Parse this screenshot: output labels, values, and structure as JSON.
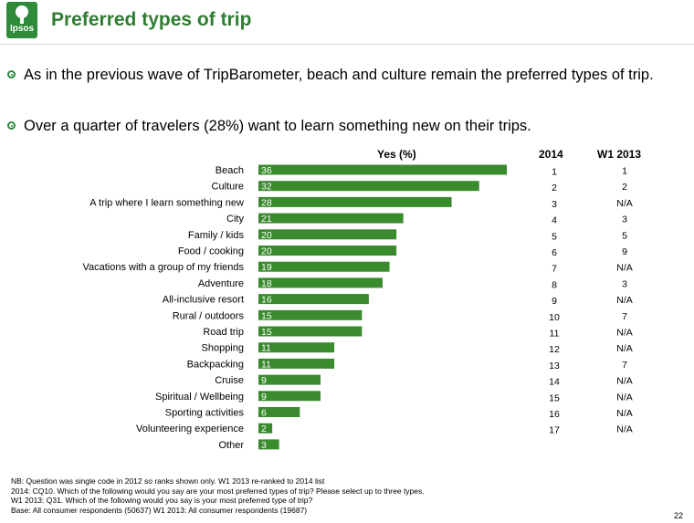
{
  "header": {
    "logo_text": "Ipsos",
    "title": "Preferred types of trip"
  },
  "bullets": [
    "As in the previous wave of TripBarometer, beach and culture remain the preferred types of trip.",
    "Over a quarter of travelers (28%) want to learn something new on their trips."
  ],
  "columns": {
    "yes": "Yes (%)",
    "rank_2014": "2014",
    "rank_w1": "W1 2013"
  },
  "colors": {
    "bar": "#3a8a2e",
    "accent": "#2f8a3a"
  },
  "chart_data": {
    "type": "bar",
    "orientation": "horizontal",
    "xlabel": "Yes (%)",
    "categories": [
      "Beach",
      "Culture",
      "A trip where I learn something new",
      "City",
      "Family / kids",
      "Food / cooking",
      "Vacations with a group of my friends",
      "Adventure",
      "All-inclusive resort",
      "Rural / outdoors",
      "Road trip",
      "Shopping",
      "Backpacking",
      "Cruise",
      "Spiritual / Wellbeing",
      "Sporting activities",
      "Volunteering experience",
      "Other"
    ],
    "values": [
      36,
      32,
      28,
      21,
      20,
      20,
      19,
      18,
      16,
      15,
      15,
      11,
      11,
      9,
      9,
      6,
      2,
      3
    ],
    "xlim": [
      0,
      36
    ],
    "ranks_2014": [
      "1",
      "2",
      "3",
      "4",
      "5",
      "6",
      "7",
      "8",
      "9",
      "10",
      "11",
      "12",
      "13",
      "14",
      "15",
      "16",
      "17"
    ],
    "ranks_w1_2013": [
      "1",
      "2",
      "N/A",
      "3",
      "5",
      "9",
      "N/A",
      "3",
      "N/A",
      "7",
      "N/A",
      "N/A",
      "7",
      "N/A",
      "N/A",
      "N/A",
      "N/A"
    ]
  },
  "footnotes": [
    "NB: Question was single code in 2012 so ranks shown only. W1 2013 re-ranked to 2014 list",
    "2014: CQ10. Which of the following would you say are your most preferred types of trip? Please select up to three types.",
    "W1 2013: Q31. Which of the following would you say is your most preferred type of trip?",
    "Base: All consumer respondents (50637) W1 2013: All consumer respondents (19687)"
  ],
  "page_number": "22"
}
